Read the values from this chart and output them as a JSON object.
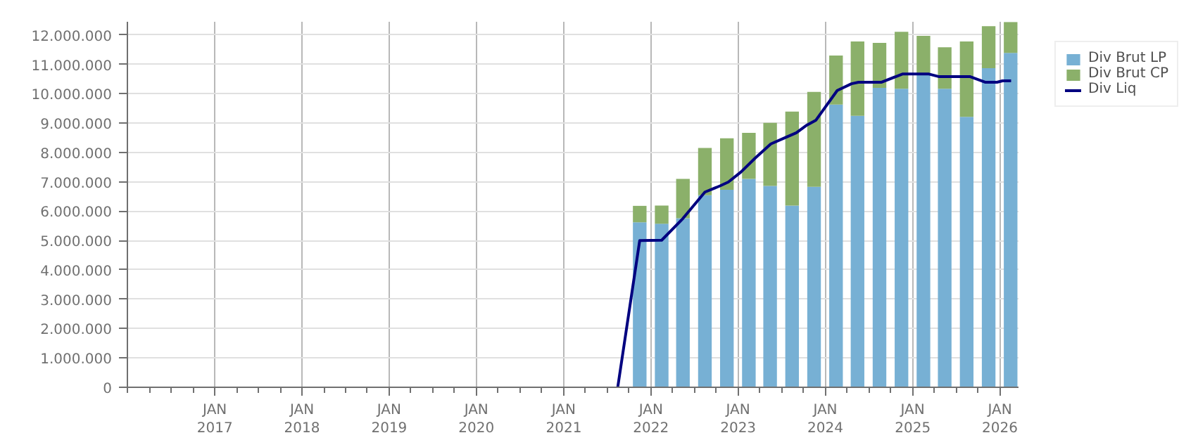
{
  "chart_data": {
    "type": "bar",
    "stacked": true,
    "x": [
      "2021-11-15",
      "2022-02-15",
      "2022-05-15",
      "2022-08-15",
      "2022-11-15",
      "2023-02-15",
      "2023-05-15",
      "2023-08-15",
      "2023-11-15",
      "2024-02-15",
      "2024-05-15",
      "2024-08-15",
      "2024-11-15",
      "2025-02-15",
      "2025-05-15",
      "2025-08-15",
      "2025-11-15",
      "2026-02-15"
    ],
    "series": [
      {
        "name": "Div Brut LP",
        "color": "#77b0d4",
        "values": [
          5620000,
          5570000,
          5760000,
          6540000,
          6730000,
          7100000,
          6860000,
          6190000,
          6830000,
          9630000,
          9250000,
          10200000,
          10170000,
          10670000,
          10170000,
          9210000,
          10870000,
          11390000
        ]
      },
      {
        "name": "Div Brut CP",
        "color": "#8bb06a",
        "values": [
          560000,
          620000,
          1340000,
          1610000,
          1750000,
          1570000,
          2150000,
          3200000,
          3230000,
          1670000,
          2530000,
          1530000,
          1940000,
          1300000,
          1410000,
          2570000,
          1430000,
          1050000
        ]
      },
      {
        "name": "Div Liq",
        "color": "#000080",
        "type": "line",
        "x": [
          "2021-08-15",
          "2021-11-15",
          "2022-02-15",
          "2022-05-15",
          "2022-08-15",
          "2022-10-17",
          "2022-11-21",
          "2023-01-14",
          "2023-03-14",
          "2023-05-18",
          "2023-07-10",
          "2023-09-02",
          "2023-10-12",
          "2023-11-23",
          "2024-02-20",
          "2024-04-20",
          "2024-05-19",
          "2024-08-22",
          "2024-11-19",
          "2025-03-10",
          "2025-04-22",
          "2025-08-30",
          "2025-11-02",
          "2025-12-20",
          "2026-01-12",
          "2026-02-17"
        ],
        "values": [
          0,
          5000000,
          5010000,
          5750000,
          6650000,
          6860000,
          6990000,
          7340000,
          7810000,
          8290000,
          8480000,
          8670000,
          8910000,
          9100000,
          10110000,
          10340000,
          10390000,
          10390000,
          10670000,
          10670000,
          10580000,
          10580000,
          10390000,
          10390000,
          10440000,
          10440000
        ]
      }
    ],
    "xlim": [
      "2016-01-01",
      "2026-03-20"
    ],
    "xticks": [
      {
        "value": "2017-01-01",
        "label": "JAN\n2017"
      },
      {
        "value": "2018-01-01",
        "label": "JAN\n2018"
      },
      {
        "value": "2019-01-01",
        "label": "JAN\n2019"
      },
      {
        "value": "2020-01-01",
        "label": "JAN\n2020"
      },
      {
        "value": "2021-01-01",
        "label": "JAN\n2021"
      },
      {
        "value": "2022-01-01",
        "label": "JAN\n2022"
      },
      {
        "value": "2023-01-01",
        "label": "JAN\n2023"
      },
      {
        "value": "2024-01-01",
        "label": "JAN\n2024"
      },
      {
        "value": "2025-01-01",
        "label": "JAN\n2025"
      },
      {
        "value": "2026-01-01",
        "label": "JAN\n2026"
      }
    ],
    "ylim": [
      0,
      12450000
    ],
    "yticks": [
      0,
      {
        "value": 1000000,
        "label": "1.000.000"
      },
      {
        "value": 2000000,
        "label": "2.000.000"
      },
      {
        "value": 3000000,
        "label": "3.000.000"
      },
      {
        "value": 4000000,
        "label": "4.000.000"
      },
      {
        "value": 5000000,
        "label": "5.000.000"
      },
      {
        "value": 6000000,
        "label": "6.000.000"
      },
      {
        "value": 7000000,
        "label": "7.000.000"
      },
      {
        "value": 8000000,
        "label": "8.000.000"
      },
      {
        "value": 9000000,
        "label": "9.000.000"
      },
      {
        "value": 10000000,
        "label": "10.000.000"
      },
      {
        "value": 11000000,
        "label": "11.000.000"
      },
      {
        "value": 12000000,
        "label": "12.000.000"
      }
    ],
    "grid": true,
    "legend": "top right"
  }
}
